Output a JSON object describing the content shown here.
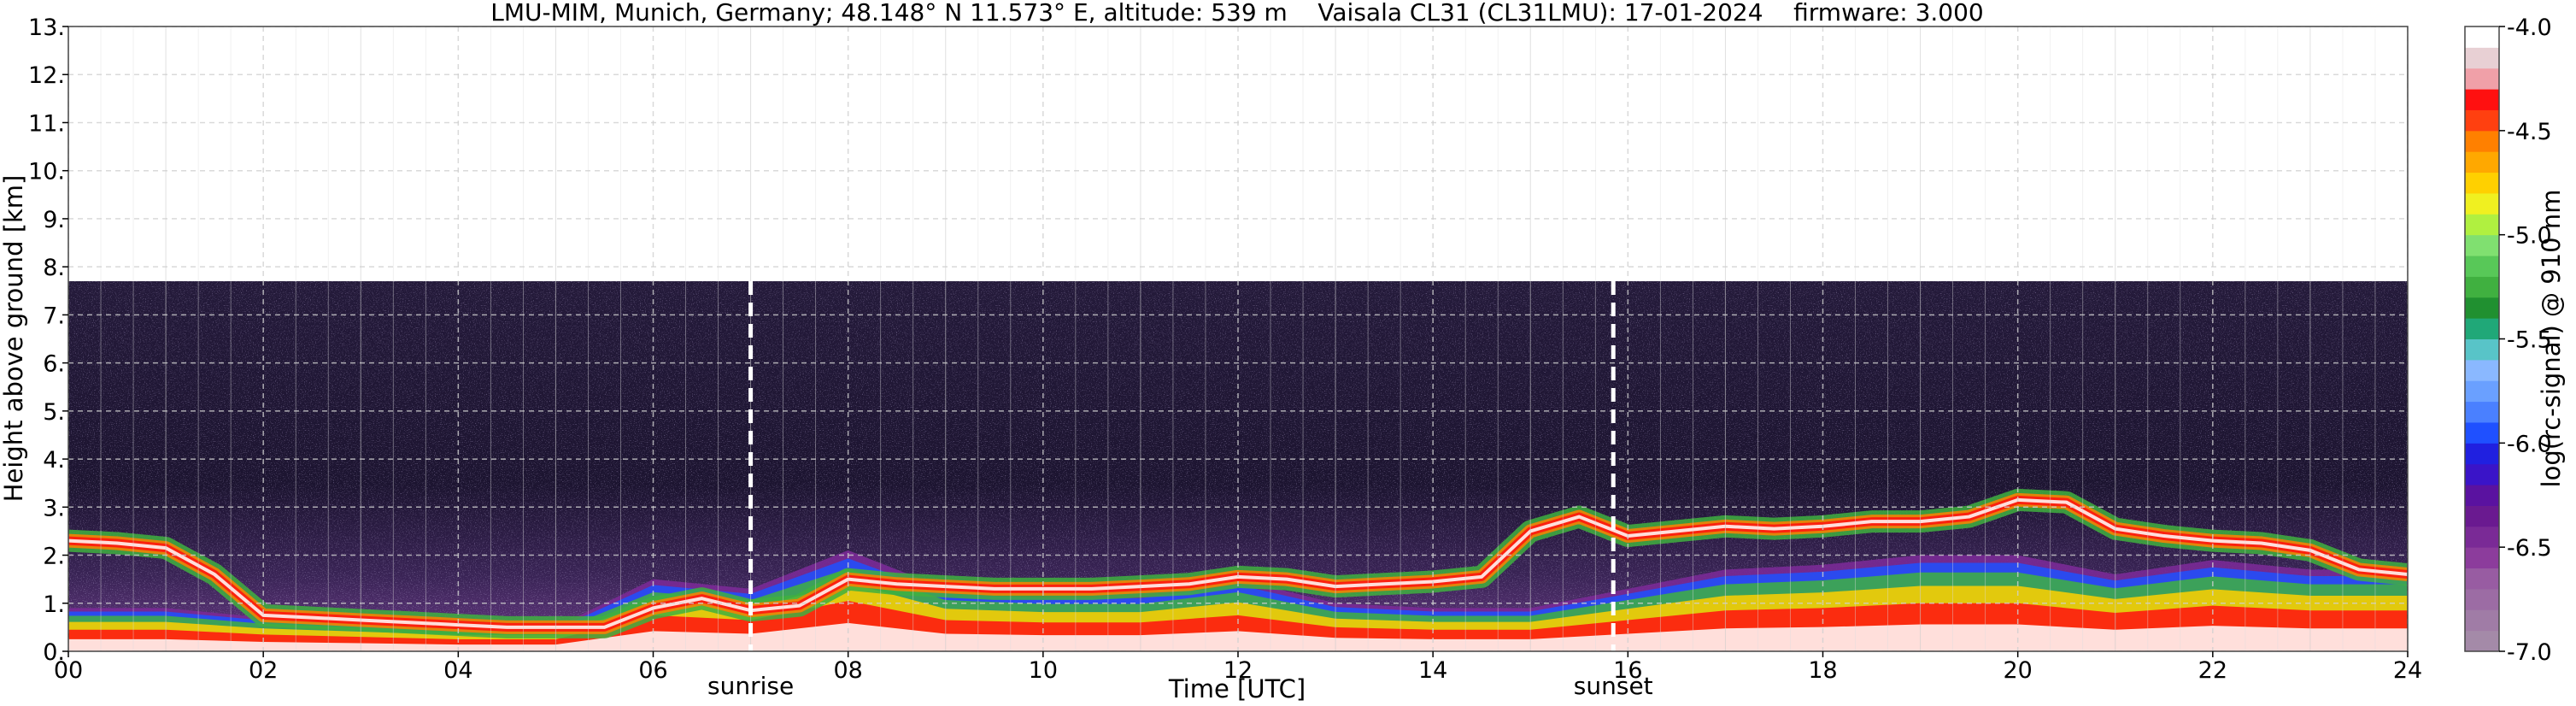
{
  "chart_data": {
    "type": "heatmap",
    "title": "LMU-MIM, Munich, Germany; 48.148° N 11.573° E, altitude: 539 m    Vaisala CL31 (CL31LMU): 17-01-2024    firmware: 3.000",
    "xlabel": "Time [UTC]",
    "ylabel": "Height above ground [km]",
    "xlim": [
      0,
      24
    ],
    "ylim": [
      0,
      13
    ],
    "x_ticks": [
      0,
      2,
      4,
      6,
      8,
      10,
      12,
      14,
      16,
      18,
      20,
      22,
      24
    ],
    "x_tick_labels": [
      "00",
      "02",
      "04",
      "06",
      "08",
      "10",
      "12",
      "14",
      "16",
      "18",
      "20",
      "22",
      "24"
    ],
    "y_ticks": [
      0,
      1,
      2,
      3,
      4,
      5,
      6,
      7,
      8,
      9,
      10,
      11,
      12,
      13
    ],
    "y_tick_labels": [
      "0.",
      "1.",
      "2.",
      "3.",
      "4.",
      "5.",
      "6.",
      "7.",
      "8.",
      "9.",
      "10.",
      "11.",
      "12.",
      "13."
    ],
    "grid": true,
    "data_top_km": 7.7,
    "markers": [
      {
        "label": "sunrise",
        "time": 7.0
      },
      {
        "label": "sunset",
        "time": 15.85
      }
    ],
    "colorbar": {
      "label": "log(rc-signal) @ 910 nm",
      "range": [
        -7.0,
        -4.0
      ],
      "ticks": [
        -7.0,
        -6.5,
        -6.0,
        -5.5,
        -5.0,
        -4.5,
        -4.0
      ],
      "tick_labels": [
        "-7.0",
        "-6.5",
        "-6.0",
        "-5.5",
        "-5.0",
        "-4.5",
        "-4.0"
      ],
      "colors": [
        "#a48aa8",
        "#a07ca6",
        "#9c6ca4",
        "#985ca2",
        "#8c3c9c",
        "#7a2a96",
        "#6a1a90",
        "#5a12a0",
        "#3a14c8",
        "#2020e0",
        "#1f50ff",
        "#4a80ff",
        "#6aa0ff",
        "#8ab8ff",
        "#58c4c8",
        "#20a878",
        "#209030",
        "#40b040",
        "#58c858",
        "#80e070",
        "#b0f040",
        "#f0f020",
        "#ffd000",
        "#ffa800",
        "#ff8000",
        "#ff4010",
        "#ff1010",
        "#f0a0a8",
        "#e8d0d4",
        "#ffffff"
      ]
    },
    "layers": [
      {
        "name": "surface-layer",
        "time": [
          0,
          1,
          2,
          3,
          4,
          5,
          6,
          7,
          8,
          9,
          10,
          11,
          12,
          13,
          14,
          15,
          16,
          17,
          18,
          19,
          20,
          21,
          22,
          23,
          24
        ],
        "top_km": [
          0.9,
          0.9,
          0.7,
          0.6,
          0.5,
          0.5,
          1.5,
          1.3,
          2.1,
          1.3,
          1.2,
          1.2,
          1.5,
          1.0,
          0.9,
          0.9,
          1.3,
          1.7,
          1.8,
          2.0,
          2.0,
          1.6,
          1.9,
          1.7,
          1.7
        ]
      },
      {
        "name": "cloud-layer",
        "time": [
          0,
          0.5,
          1,
          1.5,
          2,
          2.5,
          3,
          3.5,
          4,
          4.5,
          5,
          5.5,
          6,
          6.5,
          7,
          7.5,
          8,
          8.5,
          9,
          9.5,
          10,
          10.5,
          11,
          11.5,
          12,
          12.5,
          13,
          13.5,
          14,
          14.5,
          15,
          15.5,
          16,
          16.5,
          17,
          17.5,
          18,
          18.5,
          19,
          19.5,
          20,
          20.5,
          21,
          21.5,
          22,
          22.5,
          23,
          23.5,
          24
        ],
        "height_km": [
          2.3,
          2.25,
          2.15,
          1.6,
          0.75,
          0.7,
          0.65,
          0.6,
          0.55,
          0.5,
          0.5,
          0.5,
          0.9,
          1.1,
          0.85,
          0.95,
          1.5,
          1.4,
          1.35,
          1.3,
          1.3,
          1.3,
          1.35,
          1.4,
          1.55,
          1.5,
          1.35,
          1.4,
          1.45,
          1.55,
          2.5,
          2.8,
          2.4,
          2.5,
          2.6,
          2.55,
          2.6,
          2.7,
          2.7,
          2.8,
          3.15,
          3.1,
          2.55,
          2.4,
          2.3,
          2.25,
          2.1,
          1.7,
          1.6
        ]
      }
    ]
  }
}
